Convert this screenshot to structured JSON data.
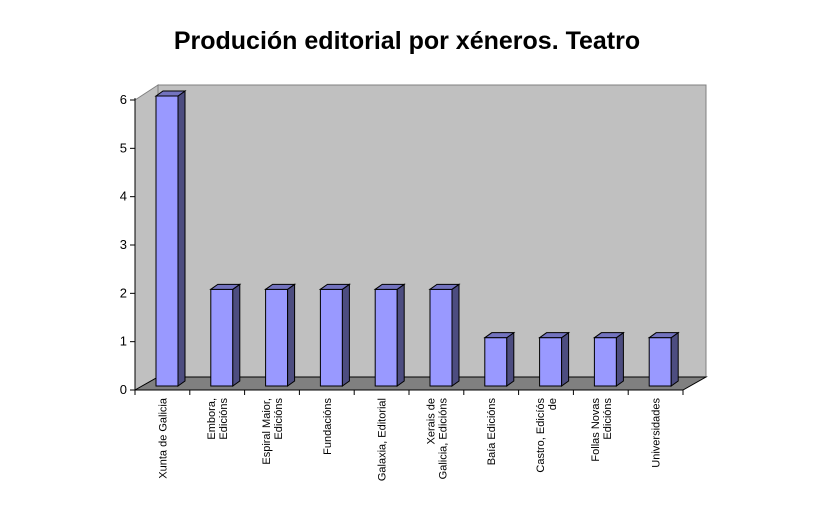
{
  "chart_data": {
    "type": "bar",
    "title": "Produción editorial por xéneros. Teatro",
    "categories": [
      "Xunta de Galicia",
      "Embora,\nEdicións",
      "Espiral Maior,\nEdicións",
      "Fundacións",
      "Galaxia, Editorial",
      "Xerais de\nGalicia, Edicións",
      "Baía Edicións",
      "Castro, Edicíós\nde",
      "Follas Novas\nEdicións",
      "Universidades"
    ],
    "values": [
      6,
      2,
      2,
      2,
      2,
      2,
      1,
      1,
      1,
      1
    ],
    "color": "#9999ff",
    "ylim": [
      0,
      6
    ],
    "yticks": [
      0,
      1,
      2,
      3,
      4,
      5,
      6
    ]
  }
}
